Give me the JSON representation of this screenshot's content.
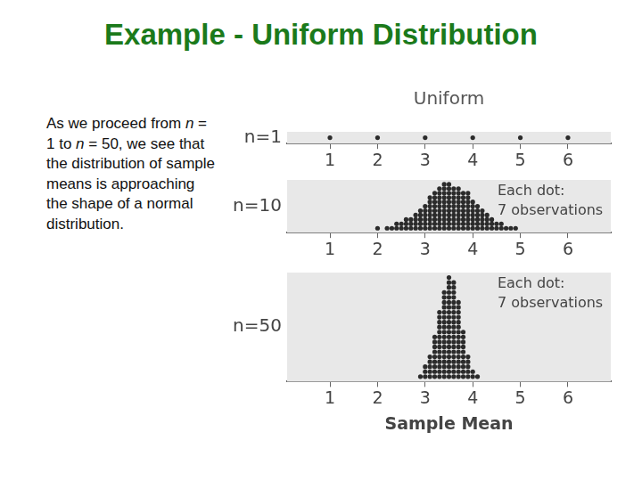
{
  "title": "Example - Uniform Distribution",
  "text": "As we proceed from n = 1 to n = 50, we see that the distribution of sample means is approaching the shape of a normal distribution.",
  "chart_data": [
    {
      "type": "dot",
      "title": "Uniform",
      "ylabel": "n=1",
      "x": [
        1,
        2,
        3,
        4,
        5,
        6
      ],
      "values": [
        1,
        1,
        1,
        1,
        1,
        1
      ],
      "color": "#2b2b2b",
      "xlim": [
        0.1,
        6.9
      ],
      "xticks": [
        1,
        2,
        3,
        4,
        5,
        6
      ],
      "ylim": [
        0,
        2
      ],
      "grid": false,
      "tick_labels": "x"
    },
    {
      "type": "dot",
      "ylabel": "n=10",
      "annotations": [
        "Each dot:",
        "7 observations"
      ],
      "x": [
        2.0,
        2.1,
        2.2,
        2.3,
        2.4,
        2.5,
        2.6,
        2.7,
        2.8,
        2.9,
        3.0,
        3.1,
        3.2,
        3.3,
        3.4,
        3.5,
        3.6,
        3.7,
        3.8,
        3.9,
        4.0,
        4.1,
        4.2,
        4.3,
        4.4,
        4.5,
        4.6,
        4.7,
        4.8,
        4.9
      ],
      "values": [
        1,
        0,
        1,
        1,
        2,
        2,
        3,
        3,
        4,
        5,
        6,
        8,
        9,
        10,
        11,
        11,
        10,
        10,
        9,
        9,
        7,
        6,
        5,
        4,
        3,
        2,
        2,
        1,
        1,
        1
      ],
      "color": "#2b2b2b",
      "xlim": [
        0.1,
        6.9
      ],
      "xticks": [
        1,
        2,
        3,
        4,
        5,
        6
      ],
      "ylim": [
        0,
        12
      ],
      "grid": false,
      "tick_labels": "x"
    },
    {
      "type": "dot",
      "ylabel": "n=50",
      "annotations": [
        "Each dot:",
        "7 observations"
      ],
      "xlabel": "Sample Mean",
      "x": [
        2.9,
        3.0,
        3.1,
        3.2,
        3.3,
        3.4,
        3.5,
        3.6,
        3.7,
        3.8,
        3.9,
        4.0,
        4.1
      ],
      "values": [
        1,
        3,
        5,
        9,
        14,
        18,
        21,
        20,
        16,
        10,
        5,
        2,
        1
      ],
      "color": "#2b2b2b",
      "xlim": [
        0.1,
        6.9
      ],
      "xticks": [
        1,
        2,
        3,
        4,
        5,
        6
      ],
      "ylim": [
        0,
        22
      ],
      "grid": false,
      "tick_labels": "x"
    }
  ]
}
